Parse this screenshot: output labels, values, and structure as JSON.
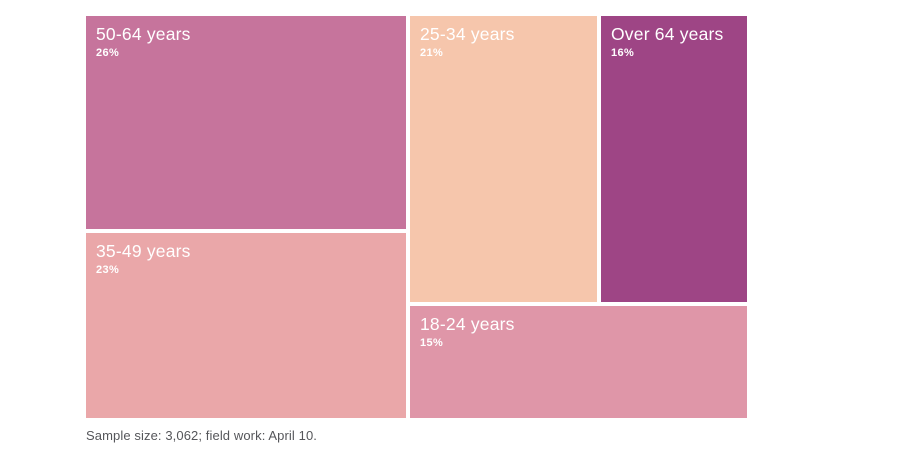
{
  "chart_data": {
    "type": "treemap",
    "title": "",
    "legend": "none",
    "value_format": "percent",
    "categories": [
      "50-64 years",
      "35-49 years",
      "25-34 years",
      "Over 64 years",
      "18-24 years"
    ],
    "values": [
      26,
      23,
      21,
      16,
      15
    ],
    "items": [
      {
        "label": "50-64 years",
        "value": 26,
        "pct": "26%",
        "color": "#c6749c"
      },
      {
        "label": "35-49 years",
        "value": 23,
        "pct": "23%",
        "color": "#eaa7a9"
      },
      {
        "label": "25-34 years",
        "value": 21,
        "pct": "21%",
        "color": "#f6c6ac"
      },
      {
        "label": "Over 64 years",
        "value": 16,
        "pct": "16%",
        "color": "#9e4585"
      },
      {
        "label": "18-24 years",
        "value": 15,
        "pct": "15%",
        "color": "#df96a8"
      }
    ],
    "layout_hint": "treemap; labels top-left of each tile in white; value % bold below label"
  },
  "footer": {
    "note": "Sample size: 3,062; field work: April 10."
  },
  "colors": {
    "background": "#ffffff",
    "tile_text": "#ffffff",
    "footer_text": "#55565a"
  }
}
